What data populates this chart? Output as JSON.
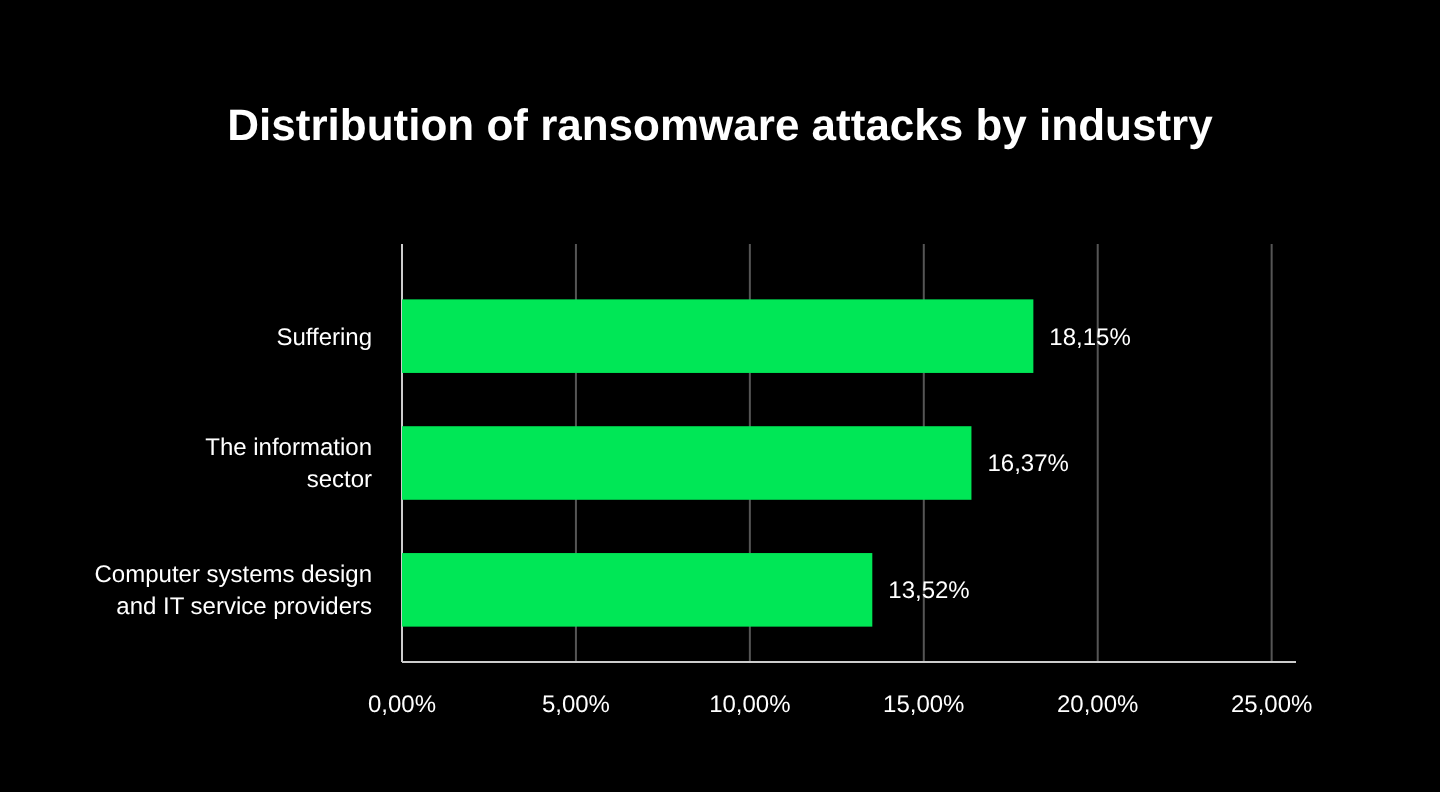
{
  "chart_data": {
    "type": "bar",
    "orientation": "horizontal",
    "title": "Distribution of ransomware attacks by industry",
    "categories": [
      "Suffering",
      "The information\nsector",
      "Computer systems design\nand IT service providers"
    ],
    "values": [
      18.15,
      16.37,
      13.52
    ],
    "value_labels": [
      "18,15%",
      "16,37%",
      "13,52%"
    ],
    "color": "#00e756",
    "xlim": [
      0,
      25.7
    ],
    "xticks": [
      {
        "value": 0,
        "label": "0,00%"
      },
      {
        "value": 5,
        "label": "5,00%"
      },
      {
        "value": 10,
        "label": "10,00%"
      },
      {
        "value": 15,
        "label": "15,00%"
      },
      {
        "value": 20,
        "label": "20,00%"
      },
      {
        "value": 25,
        "label": "25,00%"
      }
    ],
    "grid": "x"
  }
}
